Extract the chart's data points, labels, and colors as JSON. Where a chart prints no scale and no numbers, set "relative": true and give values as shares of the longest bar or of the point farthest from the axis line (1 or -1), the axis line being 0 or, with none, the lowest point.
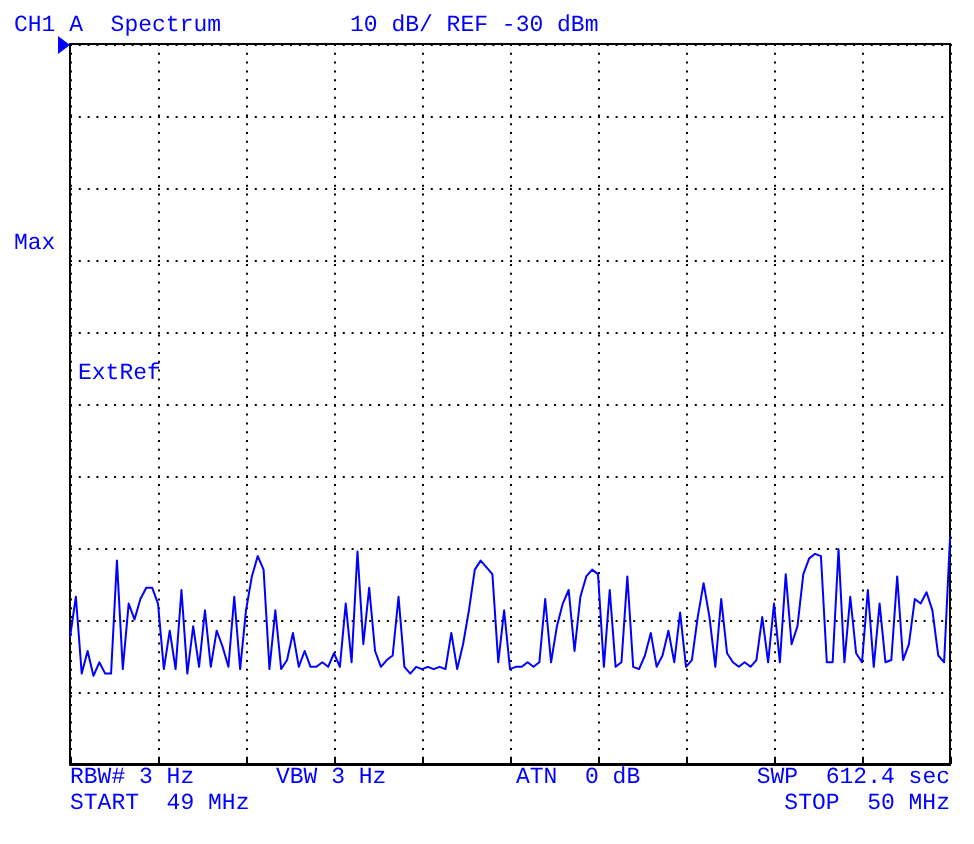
{
  "chart_data": {
    "type": "line",
    "title": "CH1 A  Spectrum",
    "subtitle": "10 dB/ REF -30 dBm",
    "annotations": [
      "Max",
      "ExtRef",
      "RBW# 3 Hz",
      "VBW 3 Hz",
      "ATN  0 dB",
      "SWP  612.4 sec",
      "START  49 MHz",
      "STOP  50 MHz"
    ],
    "relative": true,
    "color": "#0000ff",
    "marker": "none",
    "grid": true,
    "categories": [
      null,
      null,
      null,
      null,
      null,
      null,
      null,
      null,
      null,
      null,
      null,
      null,
      null,
      null,
      null,
      null,
      null,
      null,
      null,
      null,
      null,
      null,
      null,
      null,
      null,
      null,
      null,
      null,
      null,
      null,
      null,
      null,
      null,
      null,
      null,
      null,
      null,
      null,
      null,
      null,
      null,
      null,
      null,
      null,
      null,
      null,
      null,
      null,
      null,
      null,
      null,
      null,
      null,
      null,
      null,
      null,
      null,
      null,
      null,
      null,
      null,
      null,
      null,
      null,
      null,
      null,
      null,
      null,
      null,
      null,
      null,
      null,
      null,
      null,
      null,
      null,
      null,
      null,
      null,
      null,
      null,
      null,
      null,
      null,
      null,
      null,
      null,
      null,
      null,
      null,
      null,
      null,
      null,
      null,
      null,
      null,
      null,
      null,
      null,
      null,
      null,
      null,
      null,
      null,
      null,
      null,
      null,
      null,
      null,
      null,
      null,
      null,
      null,
      null,
      null,
      null,
      null,
      null,
      null,
      null,
      null,
      null,
      null,
      null,
      null,
      null,
      null,
      null,
      null,
      null,
      null,
      null,
      null,
      null,
      null,
      null,
      null,
      null,
      null,
      null,
      null,
      null,
      null,
      null,
      null,
      null,
      null,
      null,
      null,
      null,
      null
    ],
    "values": [
      0.56,
      0.74,
      0.4,
      0.5,
      0.39,
      0.45,
      0.4,
      0.4,
      0.9,
      0.42,
      0.71,
      0.64,
      0.73,
      0.78,
      0.78,
      0.71,
      0.42,
      0.59,
      0.42,
      0.77,
      0.4,
      0.61,
      0.43,
      0.68,
      0.43,
      0.59,
      0.52,
      0.43,
      0.74,
      0.42,
      0.68,
      0.83,
      0.92,
      0.86,
      0.42,
      0.68,
      0.42,
      0.46,
      0.58,
      0.43,
      0.5,
      0.43,
      0.43,
      0.45,
      0.43,
      0.49,
      0.43,
      0.71,
      0.45,
      0.94,
      0.53,
      0.78,
      0.5,
      0.43,
      0.46,
      0.48,
      0.74,
      0.43,
      0.4,
      0.43,
      0.42,
      0.43,
      0.42,
      0.43,
      0.42,
      0.58,
      0.42,
      0.53,
      0.68,
      0.86,
      0.9,
      0.87,
      0.84,
      0.45,
      0.68,
      0.42,
      0.43,
      0.43,
      0.45,
      0.43,
      0.45,
      0.73,
      0.45,
      0.61,
      0.71,
      0.77,
      0.5,
      0.74,
      0.83,
      0.86,
      0.84,
      0.43,
      0.77,
      0.43,
      0.45,
      0.83,
      0.43,
      0.42,
      0.48,
      0.58,
      0.43,
      0.48,
      0.59,
      0.45,
      0.67,
      0.43,
      0.46,
      0.65,
      0.8,
      0.65,
      0.43,
      0.73,
      0.49,
      0.45,
      0.43,
      0.45,
      0.43,
      0.46,
      0.65,
      0.45,
      0.71,
      0.45,
      0.84,
      0.53,
      0.61,
      0.84,
      0.91,
      0.93,
      0.92,
      0.45,
      0.45,
      0.95,
      0.45,
      0.74,
      0.49,
      0.45,
      0.77,
      0.43,
      0.71,
      0.45,
      0.46,
      0.83,
      0.46,
      0.53,
      0.73,
      0.71,
      0.76,
      0.68,
      0.48,
      0.45,
      1.0
    ]
  }
}
